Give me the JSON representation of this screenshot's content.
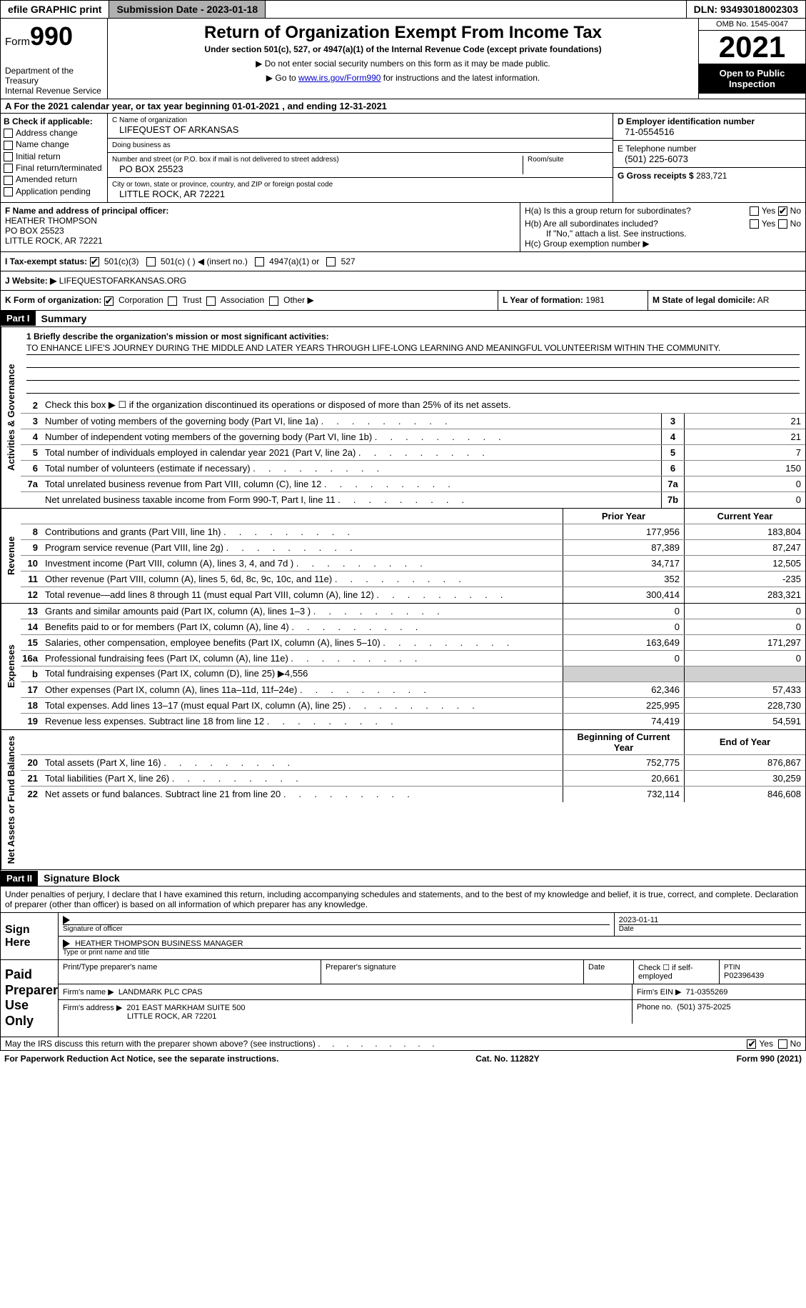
{
  "topbar": {
    "efile": "efile GRAPHIC print",
    "submission": "Submission Date - 2023-01-18",
    "dln": "DLN: 93493018002303"
  },
  "header": {
    "form_label": "Form",
    "form_number": "990",
    "dept": "Department of the Treasury",
    "irs": "Internal Revenue Service",
    "title": "Return of Organization Exempt From Income Tax",
    "subtitle": "Under section 501(c), 527, or 4947(a)(1) of the Internal Revenue Code (except private foundations)",
    "note1": "▶ Do not enter social security numbers on this form as it may be made public.",
    "note2_pre": "▶ Go to ",
    "note2_link": "www.irs.gov/Form990",
    "note2_post": " for instructions and the latest information.",
    "omb": "OMB No. 1545-0047",
    "year": "2021",
    "inspection": "Open to Public Inspection"
  },
  "rowA": "A For the 2021 calendar year, or tax year beginning 01-01-2021    , and ending 12-31-2021",
  "colB": {
    "title": "B Check if applicable:",
    "opts": [
      "Address change",
      "Name change",
      "Initial return",
      "Final return/terminated",
      "Amended return",
      "Application pending"
    ]
  },
  "colC": {
    "name_label": "C Name of organization",
    "name": "LIFEQUEST OF ARKANSAS",
    "dba_label": "Doing business as",
    "dba": "",
    "addr_label": "Number and street (or P.O. box if mail is not delivered to street address)",
    "room_label": "Room/suite",
    "addr": "PO BOX 25523",
    "city_label": "City or town, state or province, country, and ZIP or foreign postal code",
    "city": "LITTLE ROCK, AR   72221"
  },
  "colDE": {
    "d_label": "D Employer identification number",
    "d_val": "71-0554516",
    "e_label": "E Telephone number",
    "e_val": "(501) 225-6073",
    "g_label": "G Gross receipts $",
    "g_val": "283,721"
  },
  "rowF": {
    "label": "F Name and address of principal officer:",
    "name": "HEATHER THOMPSON",
    "addr1": "PO BOX 25523",
    "addr2": "LITTLE ROCK, AR   72221"
  },
  "rowH": {
    "h_a": "H(a)  Is this a group return for subordinates?",
    "h_b": "H(b)  Are all subordinates included?",
    "h_b_note": "If \"No,\" attach a list. See instructions.",
    "h_c": "H(c)  Group exemption number ▶",
    "yes": "Yes",
    "no": "No"
  },
  "rowI": {
    "label": "I   Tax-exempt status:",
    "opt1": "501(c)(3)",
    "opt2": "501(c) (    ) ◀ (insert no.)",
    "opt3": "4947(a)(1) or",
    "opt4": "527"
  },
  "rowJ": {
    "label": "J  Website: ▶",
    "val": "LIFEQUESTOFARKANSAS.ORG"
  },
  "rowK": {
    "label": "K Form of organization:",
    "opts": [
      "Corporation",
      "Trust",
      "Association",
      "Other ▶"
    ]
  },
  "rowL": {
    "label": "L Year of formation:",
    "val": "1981"
  },
  "rowM": {
    "label": "M State of legal domicile:",
    "val": "AR"
  },
  "part1": {
    "header": "Part I",
    "title": "Summary",
    "q1_label": "1  Briefly describe the organization's mission or most significant activities:",
    "q1_text": "TO ENHANCE LIFE'S JOURNEY DURING THE MIDDLE AND LATER YEARS THROUGH LIFE-LONG LEARNING AND MEANINGFUL VOLUNTEERISM WITHIN THE COMMUNITY.",
    "q2": "Check this box ▶ ☐ if the organization discontinued its operations or disposed of more than 25% of its net assets.",
    "prior_year": "Prior Year",
    "current_year": "Current Year",
    "beg_year": "Beginning of Current Year",
    "end_year": "End of Year"
  },
  "governance": {
    "rows": [
      {
        "n": "3",
        "d": "Number of voting members of the governing body (Part VI, line 1a)",
        "box": "3",
        "v": "21"
      },
      {
        "n": "4",
        "d": "Number of independent voting members of the governing body (Part VI, line 1b)",
        "box": "4",
        "v": "21"
      },
      {
        "n": "5",
        "d": "Total number of individuals employed in calendar year 2021 (Part V, line 2a)",
        "box": "5",
        "v": "7"
      },
      {
        "n": "6",
        "d": "Total number of volunteers (estimate if necessary)",
        "box": "6",
        "v": "150"
      },
      {
        "n": "7a",
        "d": "Total unrelated business revenue from Part VIII, column (C), line 12",
        "box": "7a",
        "v": "0"
      },
      {
        "n": "",
        "d": "Net unrelated business taxable income from Form 990-T, Part I, line 11",
        "box": "7b",
        "v": "0"
      }
    ]
  },
  "revenue": {
    "rows": [
      {
        "n": "8",
        "d": "Contributions and grants (Part VIII, line 1h)",
        "p": "177,956",
        "c": "183,804"
      },
      {
        "n": "9",
        "d": "Program service revenue (Part VIII, line 2g)",
        "p": "87,389",
        "c": "87,247"
      },
      {
        "n": "10",
        "d": "Investment income (Part VIII, column (A), lines 3, 4, and 7d )",
        "p": "34,717",
        "c": "12,505"
      },
      {
        "n": "11",
        "d": "Other revenue (Part VIII, column (A), lines 5, 6d, 8c, 9c, 10c, and 11e)",
        "p": "352",
        "c": "-235"
      },
      {
        "n": "12",
        "d": "Total revenue—add lines 8 through 11 (must equal Part VIII, column (A), line 12)",
        "p": "300,414",
        "c": "283,321"
      }
    ]
  },
  "expenses": {
    "rows": [
      {
        "n": "13",
        "d": "Grants and similar amounts paid (Part IX, column (A), lines 1–3 )",
        "p": "0",
        "c": "0"
      },
      {
        "n": "14",
        "d": "Benefits paid to or for members (Part IX, column (A), line 4)",
        "p": "0",
        "c": "0"
      },
      {
        "n": "15",
        "d": "Salaries, other compensation, employee benefits (Part IX, column (A), lines 5–10)",
        "p": "163,649",
        "c": "171,297"
      },
      {
        "n": "16a",
        "d": "Professional fundraising fees (Part IX, column (A), line 11e)",
        "p": "0",
        "c": "0"
      },
      {
        "n": "b",
        "d": "Total fundraising expenses (Part IX, column (D), line 25) ▶4,556",
        "p": "",
        "c": "",
        "grey": true
      },
      {
        "n": "17",
        "d": "Other expenses (Part IX, column (A), lines 11a–11d, 11f–24e)",
        "p": "62,346",
        "c": "57,433"
      },
      {
        "n": "18",
        "d": "Total expenses. Add lines 13–17 (must equal Part IX, column (A), line 25)",
        "p": "225,995",
        "c": "228,730"
      },
      {
        "n": "19",
        "d": "Revenue less expenses. Subtract line 18 from line 12",
        "p": "74,419",
        "c": "54,591"
      }
    ]
  },
  "netassets": {
    "rows": [
      {
        "n": "20",
        "d": "Total assets (Part X, line 16)",
        "p": "752,775",
        "c": "876,867"
      },
      {
        "n": "21",
        "d": "Total liabilities (Part X, line 26)",
        "p": "20,661",
        "c": "30,259"
      },
      {
        "n": "22",
        "d": "Net assets or fund balances. Subtract line 21 from line 20",
        "p": "732,114",
        "c": "846,608"
      }
    ]
  },
  "part2": {
    "header": "Part II",
    "title": "Signature Block",
    "declaration": "Under penalties of perjury, I declare that I have examined this return, including accompanying schedules and statements, and to the best of my knowledge and belief, it is true, correct, and complete. Declaration of preparer (other than officer) is based on all information of which preparer has any knowledge."
  },
  "sign": {
    "label": "Sign Here",
    "sig_label": "Signature of officer",
    "date_label": "Date",
    "date_val": "2023-01-11",
    "name_val": "HEATHER THOMPSON  BUSINESS MANAGER",
    "name_label": "Type or print name and title"
  },
  "preparer": {
    "label": "Paid Preparer Use Only",
    "print_label": "Print/Type preparer's name",
    "sig_label": "Preparer's signature",
    "date_label": "Date",
    "check_label": "Check ☐ if self-employed",
    "ptin_label": "PTIN",
    "ptin_val": "P02396439",
    "firm_name_label": "Firm's name    ▶",
    "firm_name": "LANDMARK PLC CPAS",
    "firm_ein_label": "Firm's EIN ▶",
    "firm_ein": "71-0355269",
    "firm_addr_label": "Firm's address ▶",
    "firm_addr1": "201 EAST MARKHAM SUITE 500",
    "firm_addr2": "LITTLE ROCK, AR   72201",
    "phone_label": "Phone no.",
    "phone": "(501) 375-2025"
  },
  "footer": {
    "discuss": "May the IRS discuss this return with the preparer shown above? (see instructions)",
    "yes": "Yes",
    "no": "No",
    "paperwork": "For Paperwork Reduction Act Notice, see the separate instructions.",
    "cat": "Cat. No. 11282Y",
    "form": "Form 990 (2021)"
  },
  "side_labels": {
    "gov": "Activities & Governance",
    "rev": "Revenue",
    "exp": "Expenses",
    "net": "Net Assets or Fund Balances"
  }
}
